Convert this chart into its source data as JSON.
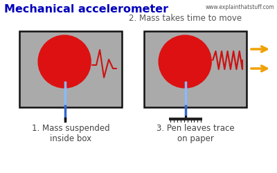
{
  "title": "Mechanical accelerometer",
  "website": "www.explainthatstuff.com",
  "subtitle": "2. Mass takes time to move",
  "label1": "1. Mass suspended\ninside box",
  "label3": "3. Pen leaves trace\non paper",
  "bg_color": "#ffffff",
  "box_color": "#aaaaaa",
  "box_edge_color": "#111111",
  "circle_color": "#dd1111",
  "arrow_color": "#f0a000",
  "title_color": "#0000bb",
  "subtitle_color": "#555555",
  "label_color": "#444444",
  "website_color": "#555555",
  "spring_color": "#cc1111",
  "pen_light": "#88bbff",
  "pen_dark": "#3366cc",
  "pen_tip": "#111111"
}
